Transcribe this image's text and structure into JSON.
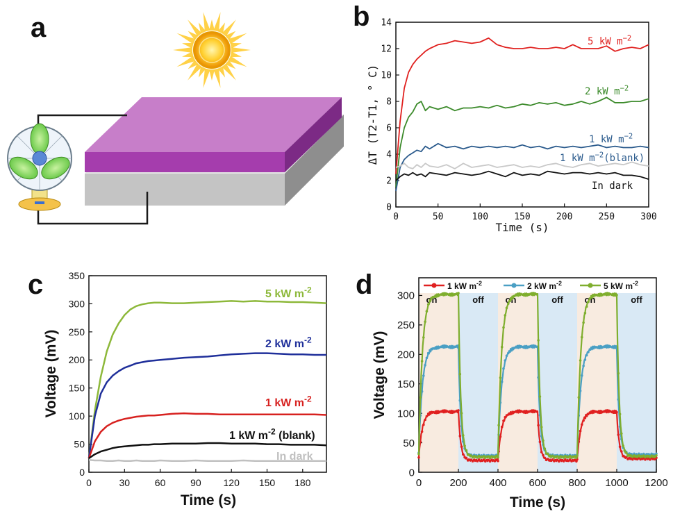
{
  "panels": {
    "a": "a",
    "b": "b",
    "c": "c",
    "d": "d"
  },
  "chart_data": [
    {
      "panel": "b",
      "type": "line",
      "xlabel": "Time (s)",
      "ylabel": "ΔT (T2-T1, ° C)",
      "xlim": [
        0,
        300
      ],
      "ylim": [
        0,
        14
      ],
      "xticks": [
        0,
        50,
        100,
        150,
        200,
        250,
        300
      ],
      "yticks": [
        0,
        2,
        4,
        6,
        8,
        10,
        12,
        14
      ],
      "grid": false,
      "series": [
        {
          "name": "5 kW m-2",
          "label_main": "5 kW m",
          "label_sup": "−2",
          "color": "#e0201e",
          "x": [
            0,
            5,
            10,
            15,
            20,
            25,
            30,
            35,
            40,
            50,
            60,
            70,
            80,
            90,
            100,
            110,
            120,
            130,
            140,
            150,
            160,
            170,
            180,
            190,
            200,
            210,
            220,
            230,
            240,
            250,
            260,
            270,
            280,
            290,
            300
          ],
          "y": [
            2.5,
            6.5,
            9.0,
            10.2,
            10.8,
            11.2,
            11.5,
            11.8,
            12.0,
            12.3,
            12.4,
            12.6,
            12.5,
            12.4,
            12.5,
            12.8,
            12.3,
            12.1,
            12.0,
            12.0,
            12.1,
            12.0,
            12.0,
            12.1,
            12.0,
            12.3,
            12.0,
            12.0,
            12.0,
            12.2,
            11.8,
            12.0,
            12.1,
            12.0,
            12.3
          ]
        },
        {
          "name": "2 kW m-2",
          "label_main": "2 kW m",
          "label_sup": "−2",
          "color": "#3b8a2a",
          "x": [
            0,
            5,
            10,
            15,
            20,
            25,
            30,
            35,
            40,
            50,
            60,
            70,
            80,
            90,
            100,
            110,
            120,
            130,
            140,
            150,
            160,
            170,
            180,
            190,
            200,
            210,
            220,
            230,
            240,
            250,
            260,
            270,
            280,
            290,
            300
          ],
          "y": [
            1.5,
            4.5,
            6.0,
            6.8,
            7.2,
            7.8,
            8.0,
            7.3,
            7.6,
            7.4,
            7.6,
            7.3,
            7.5,
            7.5,
            7.6,
            7.5,
            7.7,
            7.5,
            7.6,
            7.8,
            7.7,
            7.9,
            7.8,
            7.9,
            7.7,
            7.8,
            8.0,
            7.8,
            8.0,
            8.3,
            7.9,
            7.9,
            8.0,
            8.0,
            8.2
          ]
        },
        {
          "name": "1 kW m-2",
          "label_main": "1 kW m",
          "label_sup": "−2",
          "color": "#2a5a8c",
          "x": [
            0,
            5,
            10,
            15,
            20,
            25,
            30,
            35,
            40,
            50,
            60,
            70,
            80,
            90,
            100,
            110,
            120,
            130,
            140,
            150,
            160,
            170,
            180,
            190,
            200,
            210,
            220,
            230,
            240,
            250,
            260,
            270,
            280,
            290,
            300
          ],
          "y": [
            1.2,
            3.0,
            3.6,
            3.9,
            4.1,
            4.3,
            4.2,
            4.6,
            4.4,
            4.8,
            4.5,
            4.6,
            4.4,
            4.6,
            4.5,
            4.6,
            4.5,
            4.6,
            4.5,
            4.7,
            4.5,
            4.6,
            4.4,
            4.6,
            4.5,
            4.6,
            4.5,
            4.6,
            4.7,
            4.5,
            4.6,
            4.5,
            4.5,
            4.6,
            4.5
          ]
        },
        {
          "name": "1 kW m-2 (blank)",
          "label_main": "1 kW m",
          "label_sup": "−2",
          "label_tail": "(blank)",
          "color": "#c8c8c8",
          "x": [
            0,
            5,
            10,
            15,
            20,
            25,
            30,
            35,
            40,
            50,
            60,
            70,
            80,
            90,
            100,
            110,
            120,
            130,
            140,
            150,
            160,
            170,
            180,
            190,
            200,
            210,
            220,
            230,
            240,
            250,
            260,
            270,
            280,
            290,
            300
          ],
          "y": [
            3.0,
            3.1,
            3.3,
            3.0,
            2.9,
            3.2,
            3.0,
            3.3,
            3.1,
            3.0,
            3.2,
            2.9,
            3.3,
            3.0,
            3.1,
            3.2,
            3.0,
            3.1,
            3.2,
            3.0,
            3.1,
            3.0,
            3.2,
            3.3,
            3.1,
            3.0,
            3.2,
            3.3,
            3.1,
            3.2,
            3.3,
            3.2,
            3.4,
            3.2,
            3.1
          ]
        },
        {
          "name": "In dark",
          "label_main": "In dark",
          "color": "#111111",
          "x": [
            0,
            5,
            10,
            15,
            20,
            25,
            30,
            35,
            40,
            50,
            60,
            70,
            80,
            90,
            100,
            110,
            120,
            130,
            140,
            150,
            160,
            170,
            180,
            190,
            200,
            210,
            220,
            230,
            240,
            250,
            260,
            270,
            280,
            290,
            300
          ],
          "y": [
            2.0,
            2.3,
            2.5,
            2.4,
            2.6,
            2.4,
            2.5,
            2.3,
            2.6,
            2.5,
            2.4,
            2.6,
            2.5,
            2.4,
            2.5,
            2.7,
            2.5,
            2.3,
            2.6,
            2.4,
            2.5,
            2.4,
            2.7,
            2.6,
            2.5,
            2.6,
            2.6,
            2.5,
            2.6,
            2.5,
            2.6,
            2.4,
            2.4,
            2.3,
            2.1
          ]
        }
      ]
    },
    {
      "panel": "c",
      "type": "line",
      "xlabel": "Time (s)",
      "ylabel": "Voltage (mV)",
      "xlim": [
        0,
        200
      ],
      "ylim": [
        0,
        350
      ],
      "xticks": [
        0,
        30,
        60,
        90,
        120,
        150,
        180
      ],
      "yticks": [
        0,
        50,
        100,
        150,
        200,
        250,
        300,
        350
      ],
      "grid": false,
      "series": [
        {
          "name": "5 kW m-2",
          "label_main": "5 kW m",
          "label_sup": "-2",
          "color": "#8db83a",
          "x": [
            0,
            5,
            10,
            15,
            20,
            25,
            30,
            35,
            40,
            45,
            50,
            55,
            60,
            70,
            80,
            90,
            100,
            110,
            120,
            130,
            140,
            150,
            160,
            170,
            180,
            190,
            200
          ],
          "y": [
            25,
            110,
            170,
            215,
            245,
            265,
            280,
            290,
            296,
            299,
            301,
            302,
            302,
            301,
            301,
            302,
            303,
            304,
            305,
            304,
            305,
            304,
            304,
            303,
            303,
            302,
            301
          ]
        },
        {
          "name": "2 kW m-2",
          "label_main": "2 kW m",
          "label_sup": "-2",
          "color": "#1f2f9a",
          "x": [
            0,
            5,
            10,
            15,
            20,
            25,
            30,
            35,
            40,
            45,
            50,
            55,
            60,
            70,
            80,
            90,
            100,
            110,
            120,
            130,
            140,
            150,
            160,
            170,
            180,
            190,
            200
          ],
          "y": [
            25,
            100,
            140,
            160,
            172,
            180,
            186,
            190,
            194,
            196,
            198,
            199,
            200,
            202,
            204,
            205,
            206,
            208,
            210,
            211,
            212,
            212,
            211,
            210,
            210,
            209,
            209
          ]
        },
        {
          "name": "1 kW m-2",
          "label_main": "1 kW m",
          "label_sup": "-2",
          "color": "#d7211f",
          "x": [
            0,
            5,
            10,
            15,
            20,
            25,
            30,
            35,
            40,
            45,
            50,
            55,
            60,
            70,
            80,
            90,
            100,
            110,
            120,
            130,
            140,
            150,
            160,
            170,
            180,
            190,
            200
          ],
          "y": [
            25,
            55,
            72,
            82,
            88,
            92,
            95,
            97,
            99,
            100,
            101,
            101,
            102,
            104,
            105,
            104,
            104,
            103,
            103,
            103,
            103,
            103,
            103,
            103,
            103,
            103,
            102
          ]
        },
        {
          "name": "1 kW m-2 (blank)",
          "label_main": "1 kW m",
          "label_sup": "-2",
          "label_tail": " (blank)",
          "color": "#111111",
          "x": [
            0,
            5,
            10,
            15,
            20,
            25,
            30,
            35,
            40,
            45,
            50,
            55,
            60,
            70,
            80,
            90,
            100,
            110,
            120,
            130,
            140,
            150,
            160,
            170,
            180,
            190,
            200
          ],
          "y": [
            25,
            32,
            37,
            40,
            43,
            45,
            46,
            47,
            48,
            49,
            49,
            50,
            50,
            51,
            51,
            51,
            52,
            52,
            51,
            51,
            51,
            50,
            50,
            49,
            49,
            49,
            48
          ]
        },
        {
          "name": "In dark",
          "label_main": "In dark",
          "color": "#c0c0c0",
          "x": [
            0,
            5,
            10,
            15,
            20,
            25,
            30,
            35,
            40,
            45,
            50,
            55,
            60,
            70,
            80,
            90,
            100,
            110,
            120,
            130,
            140,
            150,
            160,
            170,
            180,
            190,
            200
          ],
          "y": [
            22,
            21,
            21,
            20,
            20,
            21,
            20,
            20,
            21,
            20,
            20,
            20,
            21,
            20,
            20,
            21,
            20,
            20,
            20,
            21,
            20,
            20,
            20,
            20,
            20,
            20,
            20
          ]
        }
      ]
    },
    {
      "panel": "d",
      "type": "line",
      "xlabel": "Time (s)",
      "ylabel": "Voltage (mV)",
      "xlim": [
        0,
        1200
      ],
      "ylim": [
        0,
        330
      ],
      "xticks": [
        0,
        200,
        400,
        600,
        800,
        1000,
        1200
      ],
      "yticks": [
        0,
        50,
        100,
        150,
        200,
        250,
        300
      ],
      "grid": false,
      "legend_position": "top",
      "regions": [
        {
          "start": 0,
          "end": 200,
          "label": "on",
          "color": "#f8ebe0"
        },
        {
          "start": 200,
          "end": 400,
          "label": "off",
          "color": "#d9e9f5"
        },
        {
          "start": 400,
          "end": 600,
          "label": "on",
          "color": "#f8ebe0"
        },
        {
          "start": 600,
          "end": 800,
          "label": "off",
          "color": "#d9e9f5"
        },
        {
          "start": 800,
          "end": 1000,
          "label": "on",
          "color": "#f8ebe0"
        },
        {
          "start": 1000,
          "end": 1200,
          "label": "off",
          "color": "#d9e9f5"
        }
      ],
      "series": [
        {
          "name": "1 kW m-2",
          "label_main": "1 kW m",
          "label_sup": "-2",
          "color": "#e02020",
          "on_peak": 103,
          "baseline": 20,
          "end_value": 23
        },
        {
          "name": "2 kW m-2",
          "label_main": "2 kW m",
          "label_sup": "-2",
          "color": "#4a9fc4",
          "on_peak": 213,
          "baseline": 28,
          "end_value": 30
        },
        {
          "name": "5 kW m-2",
          "label_main": "5 kW m",
          "label_sup": "-2",
          "color": "#7fae2e",
          "on_peak": 302,
          "baseline": 26,
          "end_value": 27
        }
      ]
    }
  ]
}
